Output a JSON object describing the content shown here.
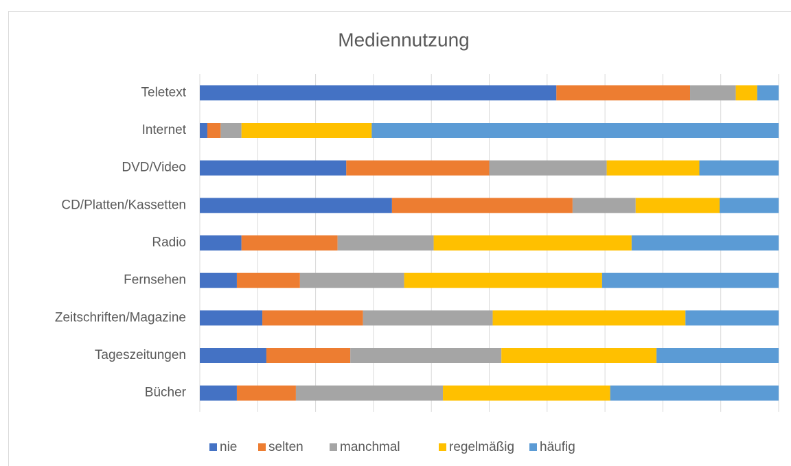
{
  "chart_data": {
    "type": "stacked-barh",
    "title": "Mediennutzung",
    "categories": [
      "Teletext",
      "Internet",
      "DVD/Video",
      "CD/Platten/Kassetten",
      "Radio",
      "Fernsehen",
      "Zeitschriften/Magazine",
      "Tageszeitungen",
      "Bücher"
    ],
    "series": [
      {
        "name": "nie",
        "color": "#4472c4",
        "values": [
          61.6,
          1.3,
          25.3,
          33.2,
          7.2,
          6.4,
          10.8,
          11.5,
          6.4
        ]
      },
      {
        "name": "selten",
        "color": "#ed7d31",
        "values": [
          23.1,
          2.3,
          24.7,
          31.2,
          16.6,
          10.9,
          17.4,
          14.5,
          10.2
        ]
      },
      {
        "name": "manchmal",
        "color": "#a5a5a5",
        "values": [
          7.9,
          3.6,
          20.3,
          10.9,
          16.6,
          18.0,
          22.4,
          26.1,
          25.4
        ]
      },
      {
        "name": "regelmäßig",
        "color": "#ffc000",
        "values": [
          3.7,
          22.5,
          16.0,
          14.5,
          34.2,
          34.2,
          33.3,
          26.8,
          28.9
        ]
      },
      {
        "name": "häufig",
        "color": "#5b9bd5",
        "values": [
          3.7,
          70.3,
          13.7,
          10.2,
          25.4,
          30.5,
          16.1,
          21.1,
          29.1
        ]
      }
    ],
    "xlim": [
      0,
      100
    ],
    "xticks": [
      0,
      10,
      20,
      30,
      40,
      50,
      60,
      70,
      80,
      90,
      100
    ],
    "grid": true,
    "legend": "bottom"
  }
}
